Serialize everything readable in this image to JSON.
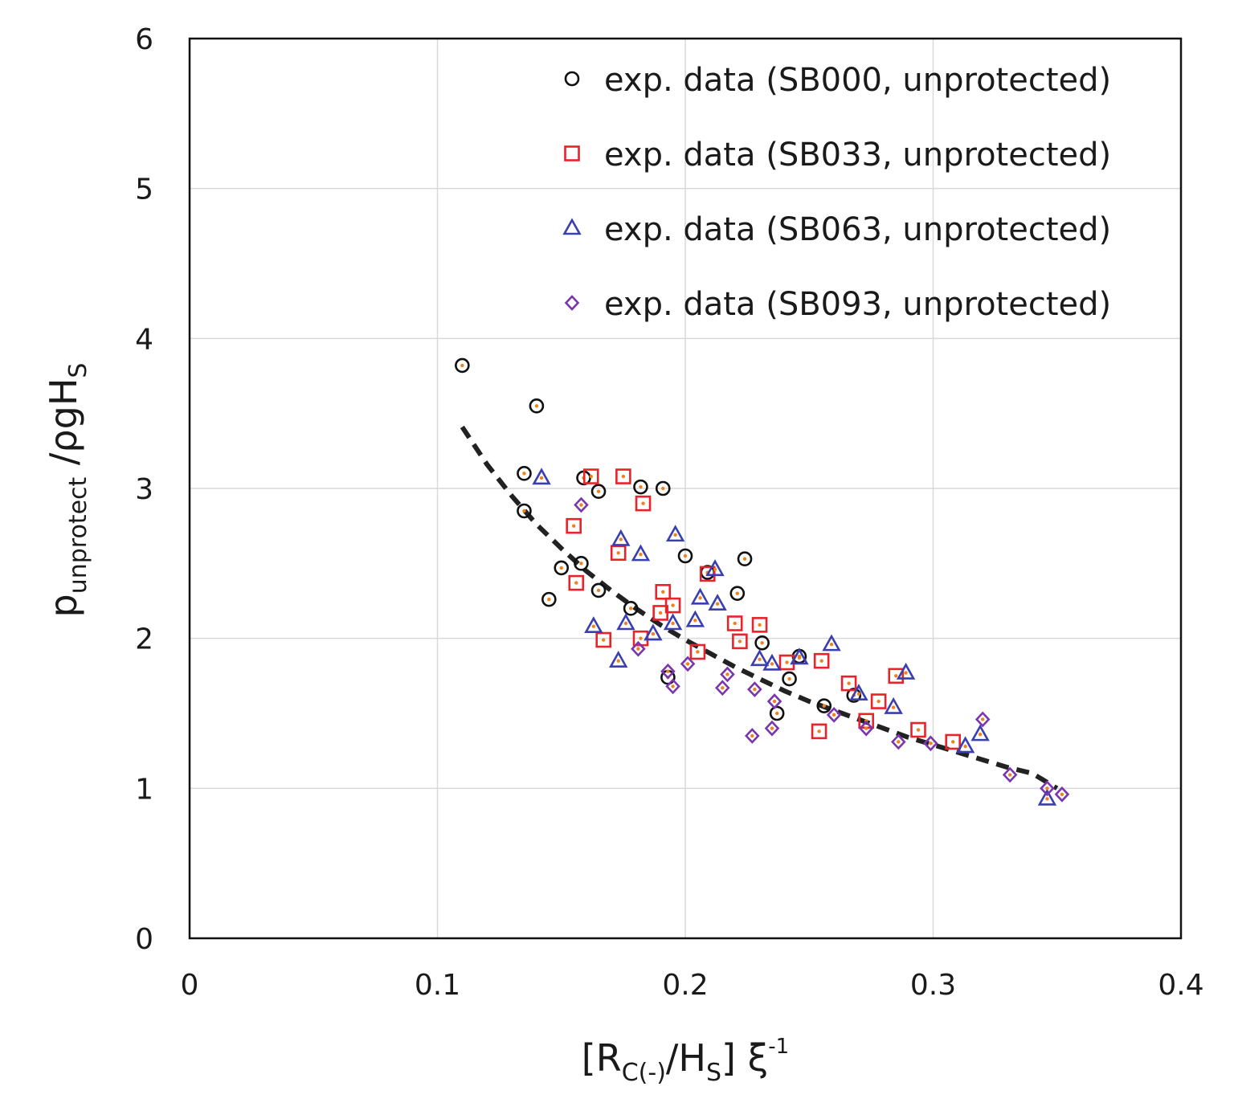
{
  "chart_data": {
    "type": "scatter",
    "title": "",
    "xlabel": "[R_C(-)/H_S] ξ^-1",
    "ylabel": "p_unprotect /ρgH_S",
    "xlim": [
      0,
      0.4
    ],
    "ylim": [
      0,
      6
    ],
    "x_ticks": [
      "0",
      "0.1",
      "0.2",
      "0.3",
      "0.4"
    ],
    "y_ticks": [
      "0",
      "1",
      "2",
      "3",
      "4",
      "5",
      "6"
    ],
    "grid": true,
    "legend_position": "top-right",
    "xlabel_parts": {
      "open": "[R",
      "sub": "C(-)",
      "mid": "/H",
      "sub2": "S",
      "close": "] ξ",
      "sup": "-1"
    },
    "ylabel_parts": {
      "main": "p",
      "sub": "unprotect",
      "rest": " /ρgH",
      "sub2": "S"
    },
    "series": [
      {
        "name": "exp. data (SB000, unprotected)",
        "marker": "circle",
        "color": "#111111",
        "points": [
          [
            0.11,
            3.82
          ],
          [
            0.14,
            3.55
          ],
          [
            0.135,
            3.1
          ],
          [
            0.135,
            2.85
          ],
          [
            0.159,
            3.07
          ],
          [
            0.165,
            2.98
          ],
          [
            0.182,
            3.01
          ],
          [
            0.191,
            3.0
          ],
          [
            0.15,
            2.47
          ],
          [
            0.158,
            2.5
          ],
          [
            0.145,
            2.26
          ],
          [
            0.165,
            2.32
          ],
          [
            0.178,
            2.2
          ],
          [
            0.2,
            2.55
          ],
          [
            0.209,
            2.44
          ],
          [
            0.224,
            2.53
          ],
          [
            0.221,
            2.3
          ],
          [
            0.231,
            1.97
          ],
          [
            0.246,
            1.88
          ],
          [
            0.193,
            1.74
          ],
          [
            0.242,
            1.73
          ],
          [
            0.237,
            1.5
          ],
          [
            0.256,
            1.55
          ],
          [
            0.268,
            1.62
          ]
        ]
      },
      {
        "name": "exp. data (SB033, unprotected)",
        "marker": "square",
        "color": "#e8232a",
        "points": [
          [
            0.162,
            3.08
          ],
          [
            0.175,
            3.08
          ],
          [
            0.183,
            2.9
          ],
          [
            0.155,
            2.75
          ],
          [
            0.173,
            2.57
          ],
          [
            0.156,
            2.37
          ],
          [
            0.191,
            2.31
          ],
          [
            0.209,
            2.43
          ],
          [
            0.195,
            2.22
          ],
          [
            0.19,
            2.17
          ],
          [
            0.182,
            2.0
          ],
          [
            0.167,
            1.99
          ],
          [
            0.205,
            1.91
          ],
          [
            0.22,
            2.1
          ],
          [
            0.23,
            2.09
          ],
          [
            0.222,
            1.98
          ],
          [
            0.241,
            1.84
          ],
          [
            0.255,
            1.85
          ],
          [
            0.266,
            1.7
          ],
          [
            0.285,
            1.75
          ],
          [
            0.278,
            1.58
          ],
          [
            0.273,
            1.45
          ],
          [
            0.254,
            1.38
          ],
          [
            0.294,
            1.39
          ],
          [
            0.308,
            1.31
          ]
        ]
      },
      {
        "name": "exp. data (SB063, unprotected)",
        "marker": "triangle",
        "color": "#3a3fb0",
        "points": [
          [
            0.142,
            3.07
          ],
          [
            0.174,
            2.66
          ],
          [
            0.182,
            2.56
          ],
          [
            0.196,
            2.69
          ],
          [
            0.212,
            2.46
          ],
          [
            0.206,
            2.27
          ],
          [
            0.213,
            2.23
          ],
          [
            0.163,
            2.08
          ],
          [
            0.176,
            2.1
          ],
          [
            0.195,
            2.1
          ],
          [
            0.204,
            2.12
          ],
          [
            0.187,
            2.03
          ],
          [
            0.173,
            1.85
          ],
          [
            0.23,
            1.86
          ],
          [
            0.235,
            1.83
          ],
          [
            0.246,
            1.87
          ],
          [
            0.259,
            1.96
          ],
          [
            0.27,
            1.63
          ],
          [
            0.284,
            1.54
          ],
          [
            0.289,
            1.77
          ],
          [
            0.313,
            1.28
          ],
          [
            0.319,
            1.36
          ],
          [
            0.346,
            0.93
          ]
        ]
      },
      {
        "name": "exp. data (SB093, unprotected)",
        "marker": "diamond",
        "color": "#7a35b0",
        "points": [
          [
            0.158,
            2.89
          ],
          [
            0.181,
            1.93
          ],
          [
            0.193,
            1.78
          ],
          [
            0.195,
            1.68
          ],
          [
            0.201,
            1.83
          ],
          [
            0.215,
            1.67
          ],
          [
            0.217,
            1.76
          ],
          [
            0.228,
            1.66
          ],
          [
            0.236,
            1.58
          ],
          [
            0.227,
            1.35
          ],
          [
            0.235,
            1.4
          ],
          [
            0.26,
            1.49
          ],
          [
            0.273,
            1.4
          ],
          [
            0.286,
            1.31
          ],
          [
            0.299,
            1.3
          ],
          [
            0.32,
            1.46
          ],
          [
            0.331,
            1.09
          ],
          [
            0.346,
            1.0
          ],
          [
            0.352,
            0.96
          ]
        ]
      }
    ],
    "fit_curve": {
      "style": "dashed",
      "color": "#222222",
      "x_range": [
        0.11,
        0.35
      ],
      "points": [
        [
          0.11,
          3.41
        ],
        [
          0.12,
          3.16
        ],
        [
          0.13,
          2.95
        ],
        [
          0.14,
          2.76
        ],
        [
          0.15,
          2.6
        ],
        [
          0.16,
          2.45
        ],
        [
          0.17,
          2.32
        ],
        [
          0.18,
          2.2
        ],
        [
          0.19,
          2.09
        ],
        [
          0.2,
          1.99
        ],
        [
          0.21,
          1.9
        ],
        [
          0.22,
          1.81
        ],
        [
          0.23,
          1.73
        ],
        [
          0.24,
          1.65
        ],
        [
          0.25,
          1.58
        ],
        [
          0.26,
          1.52
        ],
        [
          0.27,
          1.46
        ],
        [
          0.28,
          1.4
        ],
        [
          0.29,
          1.34
        ],
        [
          0.3,
          1.29
        ],
        [
          0.31,
          1.24
        ],
        [
          0.32,
          1.19
        ],
        [
          0.33,
          1.14
        ],
        [
          0.34,
          1.1
        ],
        [
          0.35,
          1.0
        ]
      ]
    },
    "marker_center_dot_color": "#f0821e"
  }
}
